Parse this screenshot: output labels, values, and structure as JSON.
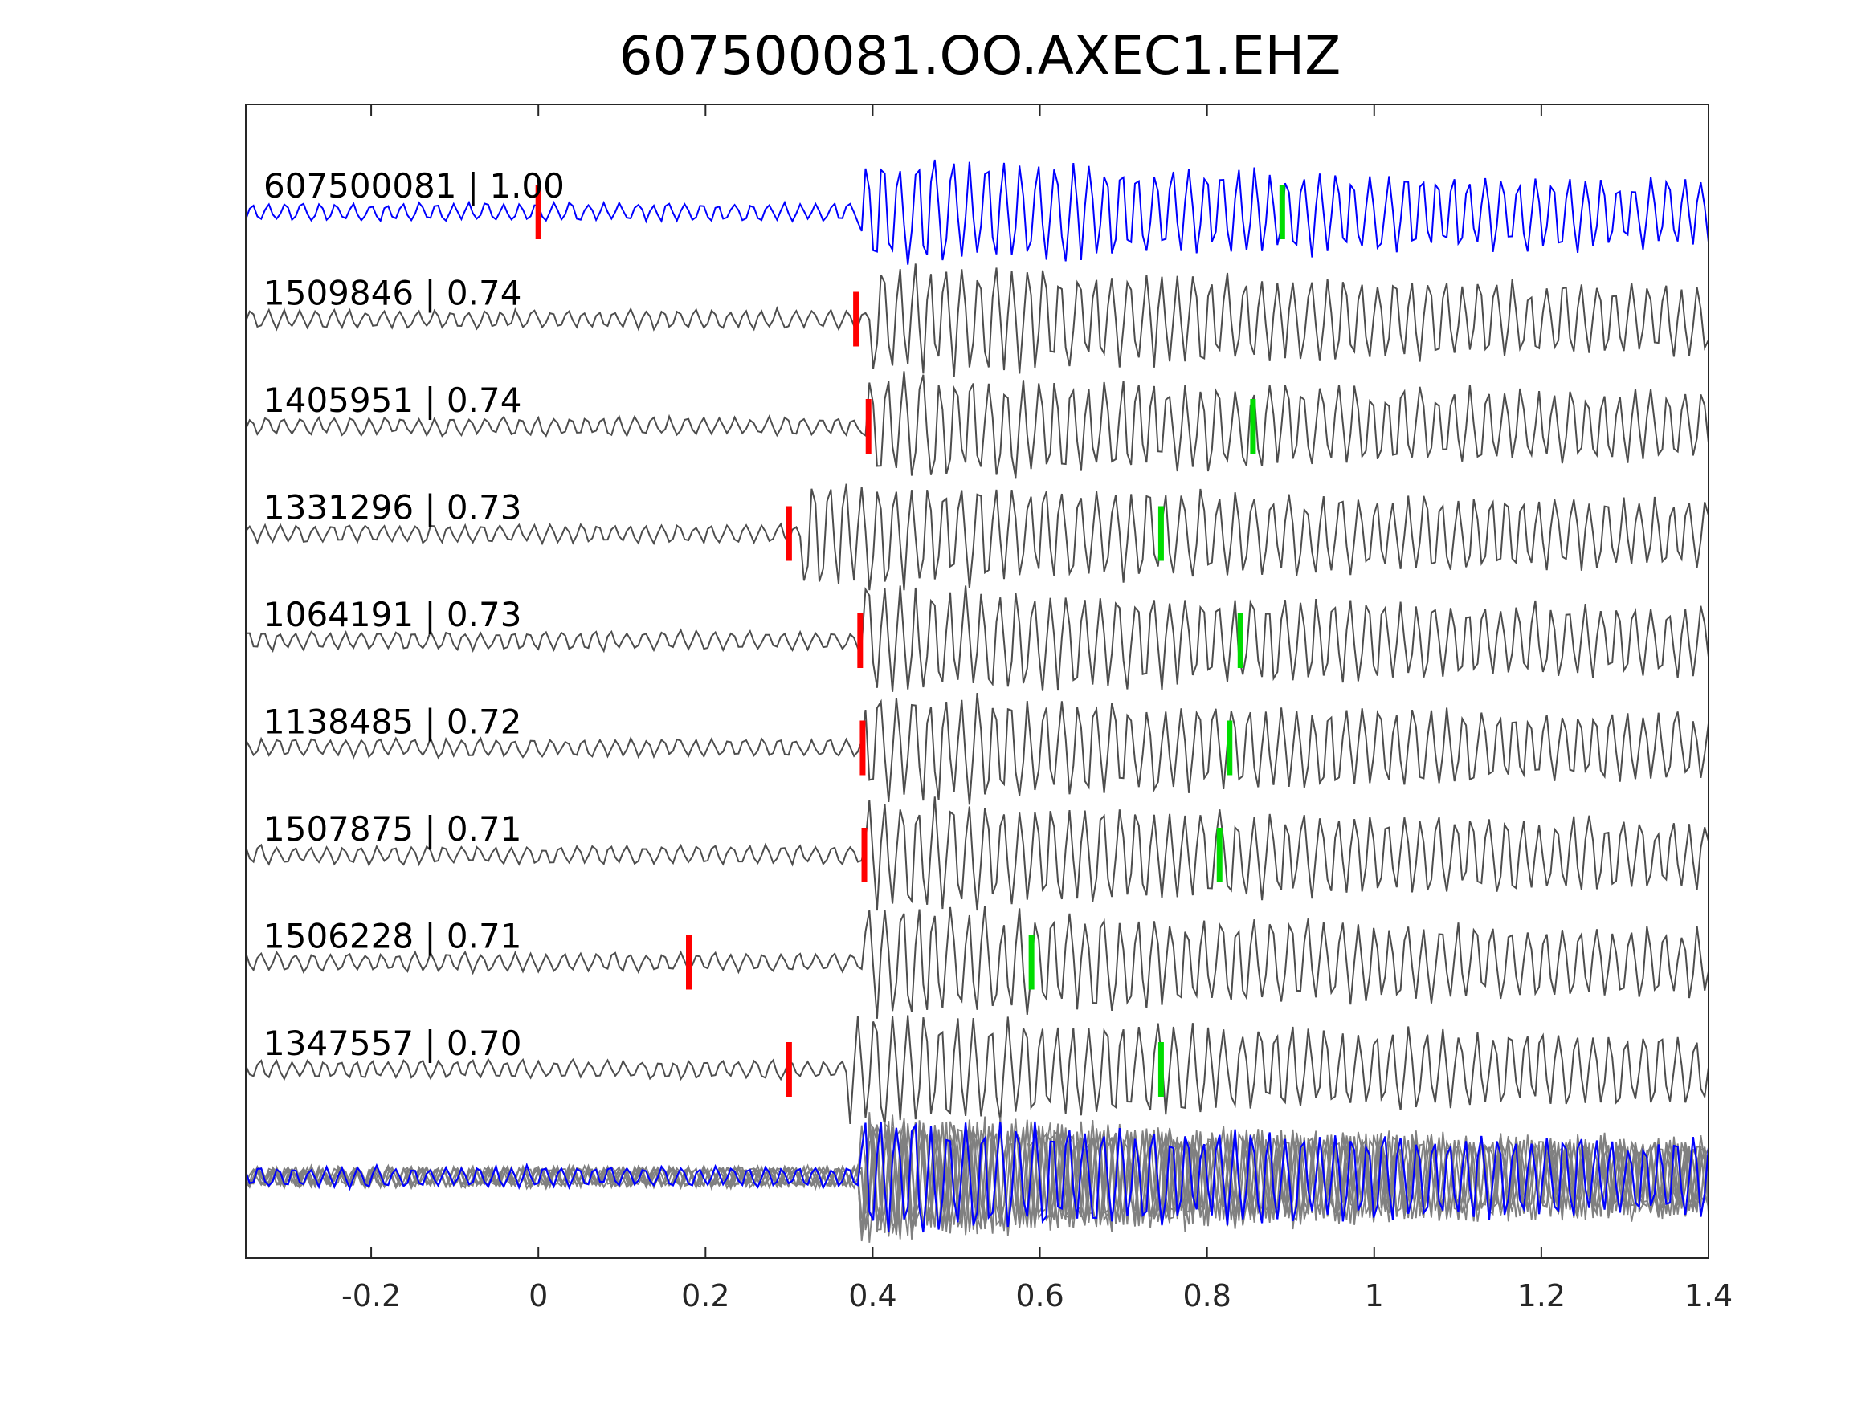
{
  "chart_data": {
    "type": "line",
    "title": "607500081.OO.AXEC1.EHZ",
    "xlabel": "",
    "ylabel": "",
    "xlim": [
      -0.35,
      1.4
    ],
    "xticks": [
      -0.2,
      0,
      0.2,
      0.4,
      0.6,
      0.8,
      1,
      1.2,
      1.4
    ],
    "xtick_labels": [
      "-0.2",
      "0",
      "0.2",
      "0.4",
      "0.6",
      "0.8",
      "1",
      "1.2",
      "1.4"
    ],
    "grid": false,
    "legend": "none",
    "colors": {
      "template": "#0000ff",
      "match": "#4d4d4d",
      "overlay": "#808080",
      "p_pick": "#ff0000",
      "s_pick": "#00dd00",
      "axes": "#262626"
    },
    "series": [
      {
        "label": "607500081 | 1.00",
        "correlation": 1.0,
        "p_pick": 0.0,
        "s_pick": 0.89,
        "onset": 0.385,
        "template": true
      },
      {
        "label": "1509846 | 0.74",
        "correlation": 0.74,
        "p_pick": 0.38,
        "s_pick": null,
        "onset": 0.4
      },
      {
        "label": "1405951 | 0.74",
        "correlation": 0.74,
        "p_pick": 0.395,
        "s_pick": 0.855,
        "onset": 0.39
      },
      {
        "label": "1331296 | 0.73",
        "correlation": 0.73,
        "p_pick": 0.3,
        "s_pick": 0.745,
        "onset": 0.31
      },
      {
        "label": "1064191 | 0.73",
        "correlation": 0.73,
        "p_pick": 0.385,
        "s_pick": 0.84,
        "onset": 0.39
      },
      {
        "label": "1138485 | 0.72",
        "correlation": 0.72,
        "p_pick": 0.388,
        "s_pick": 0.827,
        "onset": 0.39
      },
      {
        "label": "1507875 | 0.71",
        "correlation": 0.71,
        "p_pick": 0.39,
        "s_pick": 0.815,
        "onset": 0.39
      },
      {
        "label": "1506228 | 0.71",
        "correlation": 0.71,
        "p_pick": 0.18,
        "s_pick": 0.59,
        "onset": 0.39
      },
      {
        "label": "1347557 | 0.70",
        "correlation": 0.7,
        "p_pick": 0.3,
        "s_pick": 0.745,
        "onset": 0.37
      }
    ]
  }
}
